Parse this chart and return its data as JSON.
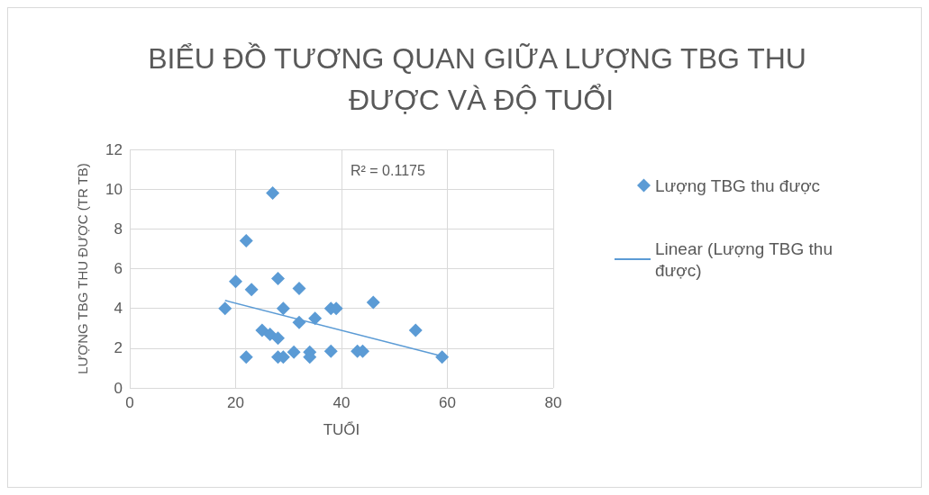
{
  "chart_data": {
    "type": "scatter",
    "title": "BIỂU ĐỒ TƯƠNG QUAN GIỮA LƯỢNG TBG THU ĐƯỢC VÀ ĐỘ TUỔI",
    "xlabel": "TUỔI",
    "ylabel": "LƯỢNG TBG THU ĐƯỢC (TR TB)",
    "annotations": [
      "R² = 0.1175"
    ],
    "series": [
      {
        "name": "Lượng TBG thu được",
        "color": "#5b9bd5",
        "x": [
          18,
          20,
          22,
          22,
          23,
          25,
          26.5,
          27,
          28,
          28,
          28,
          29,
          29,
          31,
          32,
          32,
          34,
          34,
          35,
          38,
          38,
          39,
          43,
          44,
          46,
          54,
          59
        ],
        "values": [
          4.0,
          5.35,
          7.4,
          1.55,
          4.95,
          2.9,
          2.7,
          9.8,
          5.5,
          2.5,
          1.55,
          4.0,
          1.55,
          1.8,
          5.0,
          3.3,
          1.8,
          1.55,
          3.5,
          4.0,
          1.85,
          4.0,
          1.85,
          1.85,
          4.3,
          2.9,
          1.55
        ]
      },
      {
        "name": "Linear (Lượng TBG thu được)",
        "type": "line",
        "color": "#5b9bd5",
        "x": [
          18,
          59
        ],
        "values": [
          4.4,
          1.6
        ],
        "marker": "none"
      }
    ],
    "xlim": [
      0,
      80
    ],
    "xticks": [
      0,
      20,
      40,
      60,
      80
    ],
    "ylim": [
      0,
      12
    ],
    "yticks": [
      0,
      2,
      4,
      6,
      8,
      10,
      12
    ],
    "grid": true,
    "legend": "right",
    "marker": "diamond"
  }
}
